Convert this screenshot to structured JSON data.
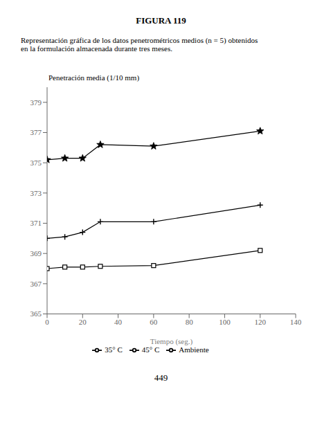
{
  "chart_data": {
    "type": "line",
    "title": "FIGURA 119",
    "subtitle": [
      "Representación gráfica de los datos penetrométricos medios (n = 5) obtenidos",
      "en la formulación almacenada durante tres meses."
    ],
    "annotations": [
      "449"
    ],
    "y_label": "Penetración media (1/10 mm)",
    "x_label": "Tiempo (seg.)",
    "x": [
      0,
      10,
      20,
      30,
      60,
      120
    ],
    "series": [
      {
        "name": "Ambiente",
        "color": "#000000",
        "marker": "plus",
        "line_style": "solid",
        "values": [
          370.0,
          370.1,
          370.4,
          371.1,
          371.1,
          372.2
        ]
      },
      {
        "name": "35° C",
        "color": "#000000",
        "marker": "square",
        "line_style": "solid",
        "values": [
          368.0,
          368.1,
          368.1,
          368.15,
          368.2,
          369.2
        ]
      },
      {
        "name": "45° C",
        "color": "#000000",
        "marker": "star",
        "line_style": "solid",
        "values": [
          375.2,
          375.3,
          375.3,
          376.2,
          376.1,
          377.1
        ]
      }
    ],
    "xlim": [
      0,
      140
    ],
    "ylim": [
      365,
      380
    ],
    "xticks": [
      0,
      20,
      40,
      60,
      80,
      100,
      120,
      140
    ],
    "yticks": [
      365,
      367,
      369,
      371,
      373,
      375,
      377,
      379
    ],
    "grid": false,
    "legend": "bottom"
  }
}
